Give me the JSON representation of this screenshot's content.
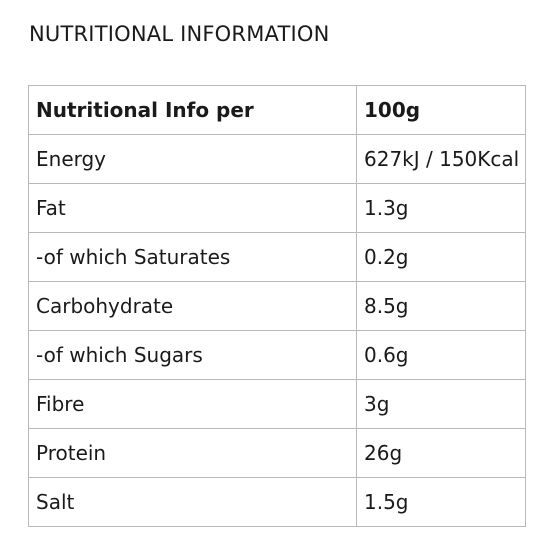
{
  "page_title": "NUTRITIONAL INFORMATION",
  "table": {
    "header": {
      "label": "Nutritional Info per",
      "value": "100g"
    },
    "rows": [
      {
        "label": "Energy",
        "value": "627kJ / 150Kcal"
      },
      {
        "label": "Fat",
        "value": "1.3g"
      },
      {
        "label": "-of which Saturates",
        "value": "0.2g"
      },
      {
        "label": "Carbohydrate",
        "value": "8.5g"
      },
      {
        "label": "-of which Sugars",
        "value": "0.6g"
      },
      {
        "label": "Fibre",
        "value": "3g"
      },
      {
        "label": "Protein",
        "value": "26g"
      },
      {
        "label": "Salt",
        "value": "1.5g"
      }
    ]
  }
}
